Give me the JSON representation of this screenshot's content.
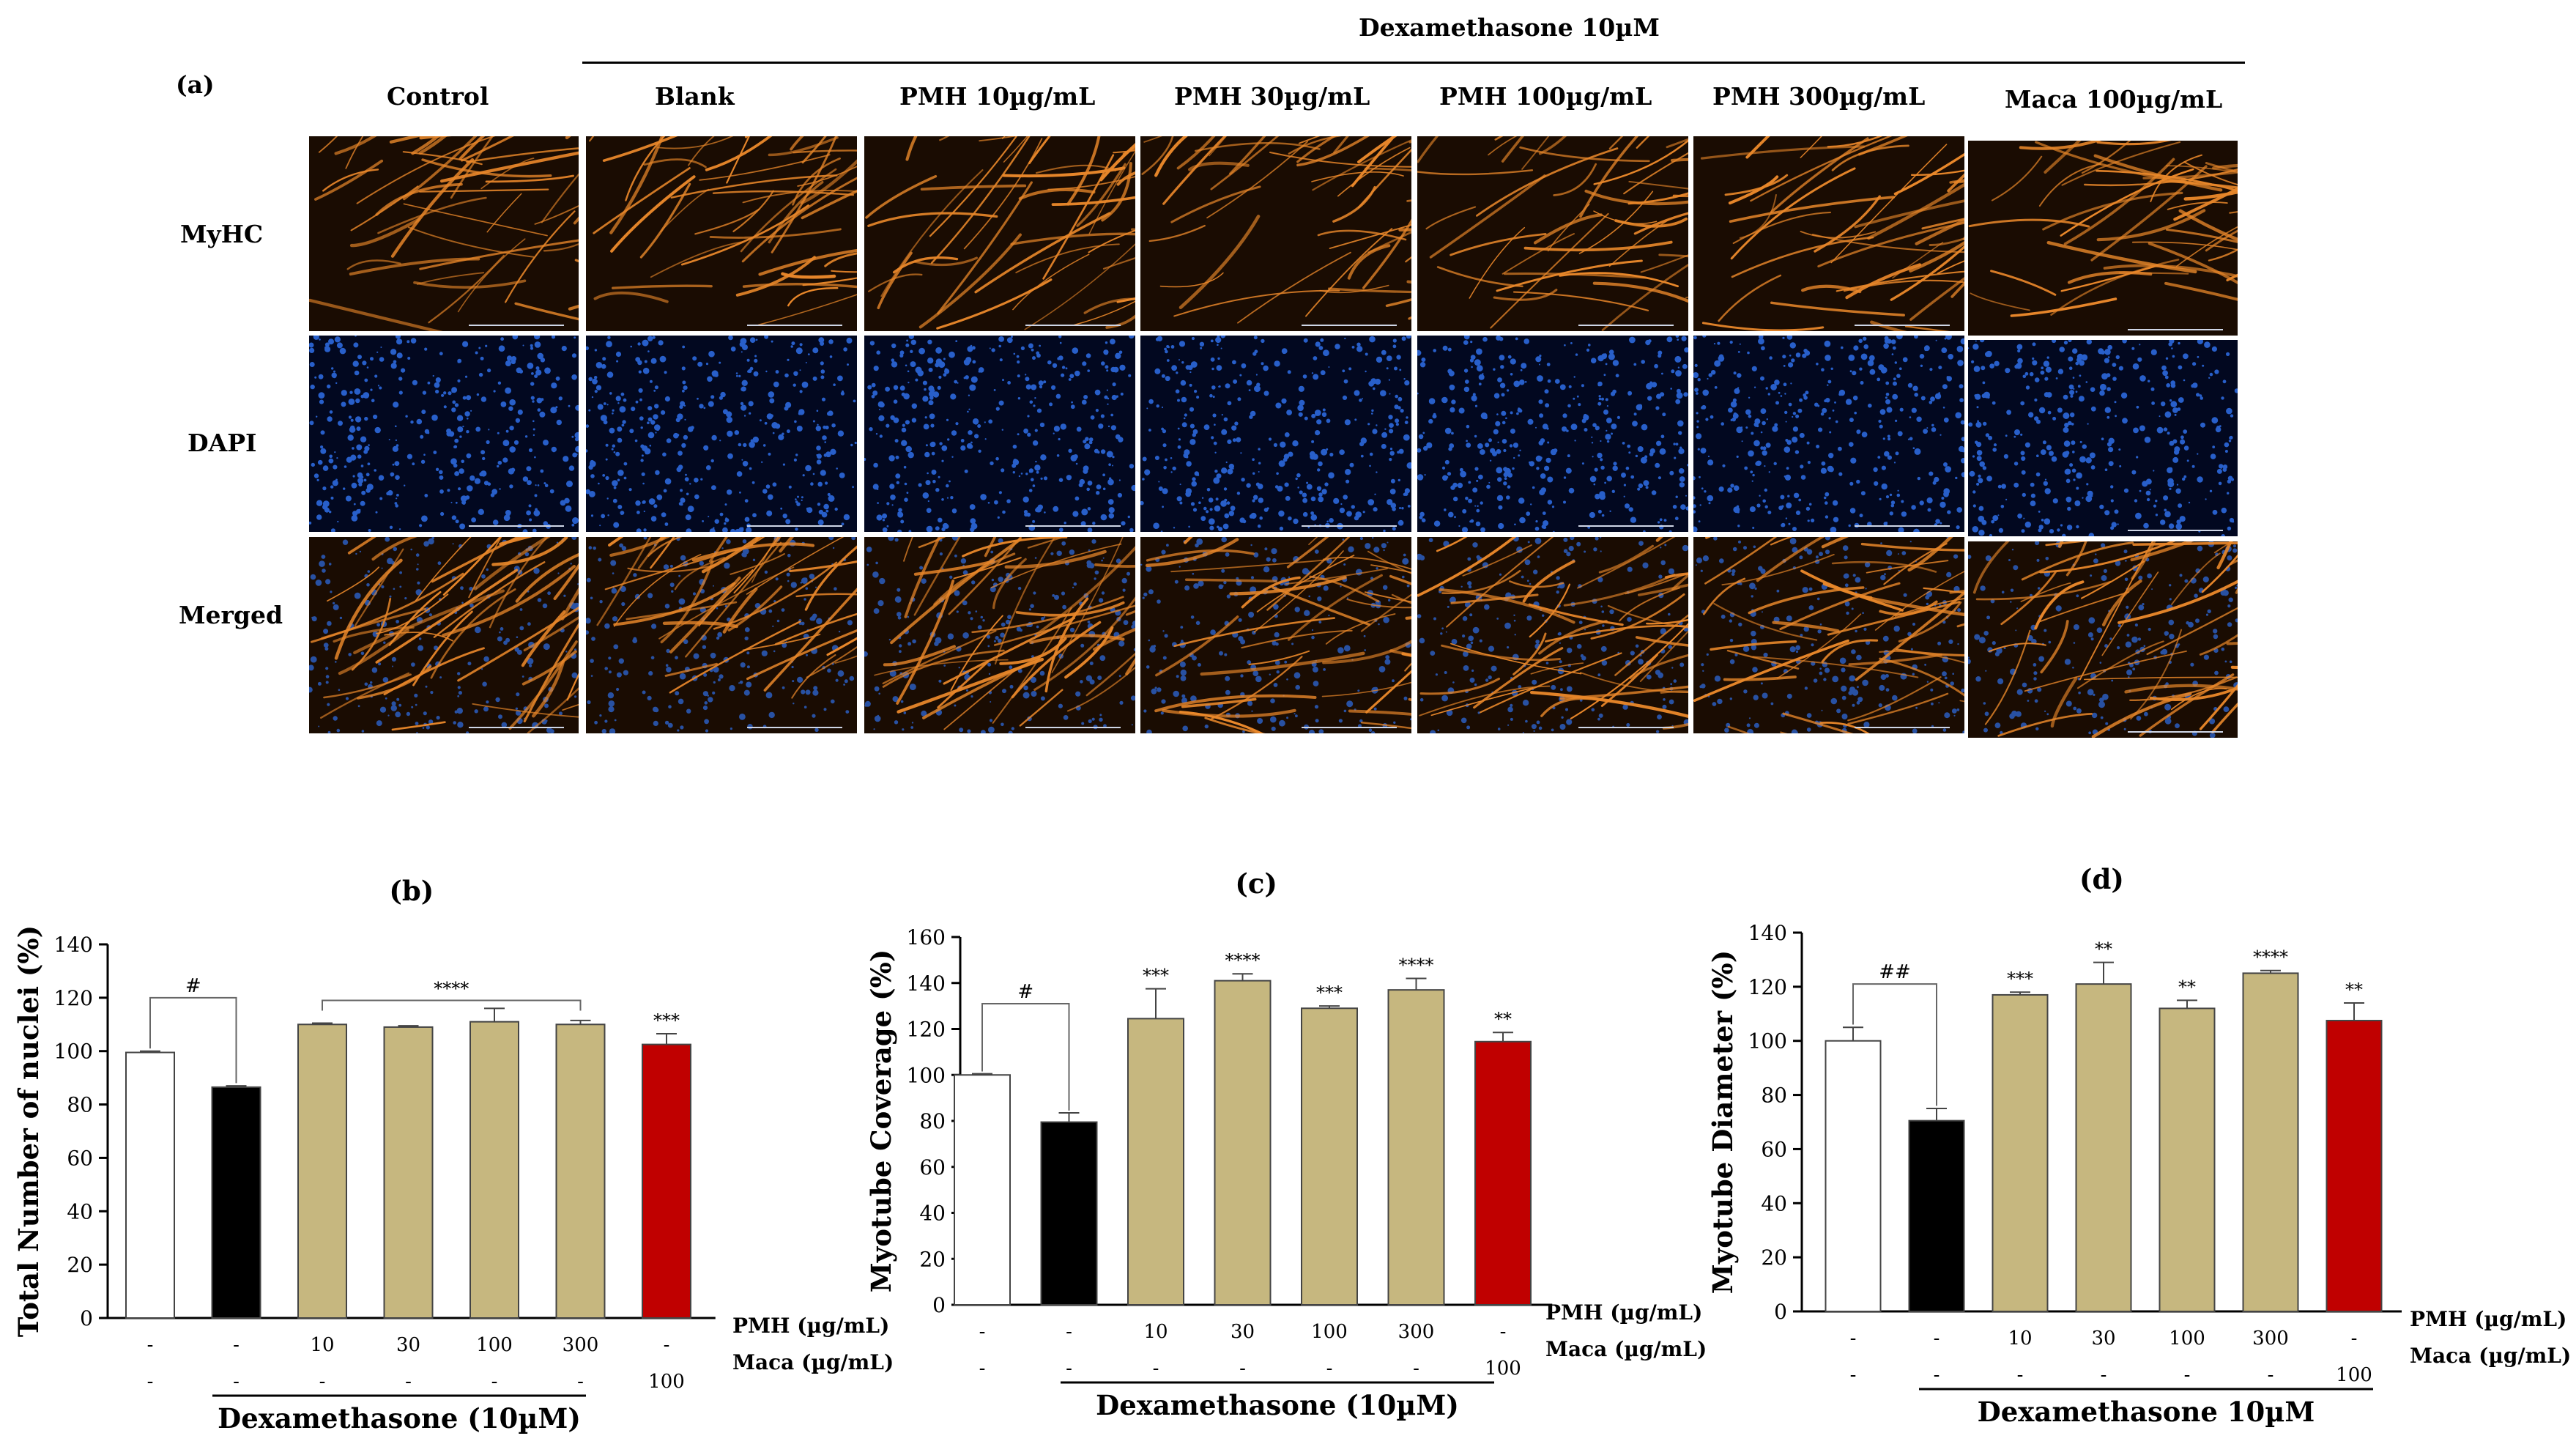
{
  "panel_a": {
    "label": "(a)",
    "header": "Dexamethasone 10µM",
    "columns": [
      "Control",
      "Blank",
      "PMH 10µg/mL",
      "PMH 30µg/mL",
      "PMH 100µg/mL",
      "PMH 300µg/mL",
      "Maca 100µg/mL"
    ],
    "rows": [
      "MyHC",
      "DAPI",
      "Merged"
    ],
    "colors": {
      "myhc_bg": "#1a0c02",
      "myhc_fiber": "#e8872a",
      "dapi_bg": "#020820",
      "dapi_dot": "#2f6fe8",
      "scale_bar": "#cfd6e6"
    }
  },
  "charts": {
    "dex_label_b": "Dexamethasone (10µM)",
    "dex_label_c": "Dexamethasone (10µM)",
    "dex_label_d": "Dexamethasone 10µM",
    "pmh_row_label": "PMH (µg/mL)",
    "maca_row_label": "Maca (µg/mL)",
    "pmh_values": [
      "-",
      "-",
      "10",
      "30",
      "100",
      "300",
      "-"
    ],
    "maca_values": [
      "-",
      "-",
      "-",
      "-",
      "-",
      "-",
      "100"
    ],
    "bar_colors": [
      "#ffffff",
      "#000000",
      "#c6b77f",
      "#c6b77f",
      "#c6b77f",
      "#c6b77f",
      "#c00000"
    ]
  },
  "chart_data": [
    {
      "type": "bar",
      "panel": "(b)",
      "title": "(b)",
      "ylabel": "Total Number of nuclei (%)",
      "xlabel": "Dexamethasone (10µM)",
      "ylim": [
        0,
        140
      ],
      "yticks": [
        "0",
        "20",
        "40",
        "60",
        "80",
        "100",
        "120",
        "140"
      ],
      "categories": [
        "Control",
        "Dexamethasone",
        "PMH 10",
        "PMH 30",
        "PMH 100",
        "PMH 300",
        "Maca 100"
      ],
      "values": [
        99.5,
        86.5,
        110,
        109,
        111,
        110,
        102.5
      ],
      "errors": [
        0.5,
        0.5,
        0.5,
        0.5,
        5,
        1.5,
        4
      ],
      "significance": [
        "",
        "",
        "",
        "",
        "",
        "",
        "***"
      ],
      "bracket_control": {
        "label": "#",
        "from": 0,
        "to": 1,
        "level": 120
      },
      "bracket_group": {
        "label": "****",
        "from": 2,
        "to": 5,
        "level": 119
      }
    },
    {
      "type": "bar",
      "panel": "(c)",
      "title": "(c)",
      "ylabel": "Myotube Coverage (%)",
      "xlabel": "Dexamethasone (10µM)",
      "ylim": [
        0,
        160
      ],
      "yticks": [
        "0",
        "20",
        "40",
        "60",
        "80",
        "100",
        "120",
        "140",
        "160"
      ],
      "categories": [
        "Control",
        "Dexamethasone",
        "PMH 10",
        "PMH 30",
        "PMH 100",
        "PMH 300",
        "Maca 100"
      ],
      "values": [
        100,
        79.5,
        124.5,
        141,
        129,
        137,
        114.5
      ],
      "errors": [
        0.5,
        4,
        13,
        3,
        1,
        5,
        4
      ],
      "significance": [
        "",
        "",
        "***",
        "****",
        "***",
        "****",
        "**"
      ],
      "bracket_control": {
        "label": "#",
        "from": 0,
        "to": 1,
        "level": 131
      }
    },
    {
      "type": "bar",
      "panel": "(d)",
      "title": "(d)",
      "ylabel": "Myotube Diameter (%)",
      "xlabel": "Dexamethasone 10µM",
      "ylim": [
        0,
        140
      ],
      "yticks": [
        "0",
        "20",
        "40",
        "60",
        "80",
        "100",
        "120",
        "140"
      ],
      "categories": [
        "Control",
        "Dexamethasone",
        "PMH 10",
        "PMH 30",
        "PMH 100",
        "PMH 300",
        "Maca 100"
      ],
      "values": [
        100,
        70.5,
        117,
        121,
        112,
        125,
        107.5
      ],
      "errors": [
        5,
        4.5,
        1,
        8,
        3,
        1,
        6.5
      ],
      "significance": [
        "",
        "",
        "***",
        "**",
        "**",
        "****",
        "**"
      ],
      "bracket_control": {
        "label": "##",
        "from": 0,
        "to": 1,
        "level": 121
      }
    }
  ]
}
